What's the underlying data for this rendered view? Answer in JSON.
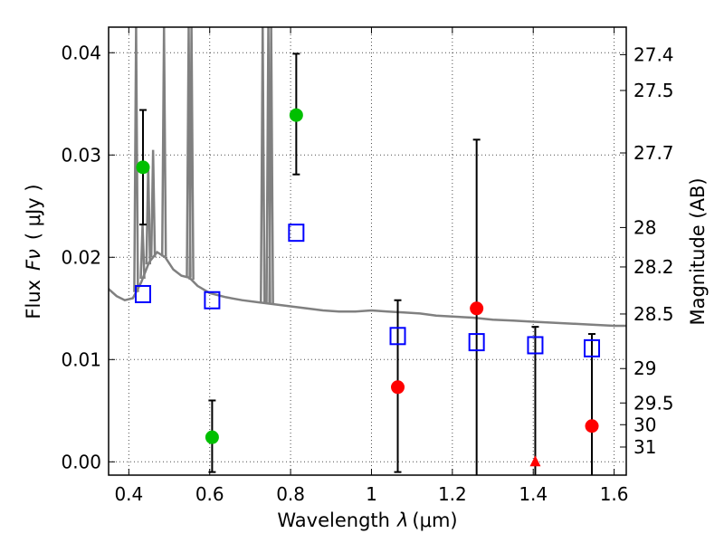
{
  "chart_data": {
    "type": "scatter",
    "xlabel_prefix": "Wavelength",
    "xlabel_symbol": "λ",
    "xlabel_unit": "(μm)",
    "ylabel_prefix": "Flux",
    "ylabel_symbol": "Fν",
    "ylabel_unit": "( μJy )",
    "y2label": "Magnitude (AB)",
    "xlim": [
      0.35,
      1.63
    ],
    "ylim": [
      -0.0013,
      0.0425
    ],
    "x_ticks": [
      0.4,
      0.6,
      0.8,
      1.0,
      1.2,
      1.4,
      1.6
    ],
    "x_tick_labels": [
      "0.4",
      "0.6",
      "0.8",
      "1",
      "1.2",
      "1.4",
      "1.6"
    ],
    "y_ticks": [
      0.0,
      0.01,
      0.02,
      0.03,
      0.04
    ],
    "y_tick_labels": [
      "0.00",
      "0.01",
      "0.02",
      "0.03",
      "0.04"
    ],
    "mag_ticks": [
      27.4,
      27.5,
      27.7,
      28,
      28.2,
      28.5,
      29,
      29.5,
      30,
      31
    ],
    "mag_tick_labels": [
      "27.4",
      "27.5",
      "27.7",
      "28",
      "28.2",
      "28.5",
      "29",
      "29.5",
      "30",
      "31"
    ],
    "grid": true,
    "colors": {
      "model": "#808080",
      "green": "#00c000",
      "red": "#ff0000",
      "model_photometry": "#0000ff",
      "errorbar": "#000000"
    },
    "series": [
      {
        "marker": "circle",
        "color": "green",
        "points": [
          {
            "x": 0.435,
            "y": 0.0288,
            "ylo": 0.0232,
            "yhi": 0.0344
          },
          {
            "x": 0.606,
            "y": 0.0024,
            "ylo": -0.001,
            "yhi": 0.006
          },
          {
            "x": 0.814,
            "y": 0.0339,
            "ylo": 0.0281,
            "yhi": 0.0399
          }
        ]
      },
      {
        "marker": "circle",
        "color": "red",
        "points": [
          {
            "x": 1.065,
            "y": 0.0073,
            "ylo": -0.001,
            "yhi": 0.0158
          },
          {
            "x": 1.26,
            "y": 0.015,
            "ylo": -0.0013,
            "yhi": 0.0315
          },
          {
            "x": 1.545,
            "y": 0.0035,
            "ylo": -0.0013,
            "yhi": 0.0125
          }
        ]
      },
      {
        "marker": "triangle",
        "color": "red",
        "points": [
          {
            "x": 1.405,
            "y": 0.0,
            "ylo": -0.0013,
            "yhi": 0.0132
          }
        ]
      },
      {
        "marker": "square",
        "color": "model_photometry",
        "points": [
          {
            "x": 0.435,
            "y": 0.0164
          },
          {
            "x": 0.606,
            "y": 0.0158
          },
          {
            "x": 0.814,
            "y": 0.0224
          },
          {
            "x": 1.065,
            "y": 0.0123
          },
          {
            "x": 1.26,
            "y": 0.0117
          },
          {
            "x": 1.405,
            "y": 0.0114
          },
          {
            "x": 1.545,
            "y": 0.0111
          }
        ]
      }
    ],
    "model_continuum": [
      [
        0.35,
        0.0169
      ],
      [
        0.37,
        0.0162
      ],
      [
        0.39,
        0.0158
      ],
      [
        0.41,
        0.016
      ],
      [
        0.43,
        0.0175
      ],
      [
        0.45,
        0.0195
      ],
      [
        0.47,
        0.0205
      ],
      [
        0.49,
        0.02
      ],
      [
        0.51,
        0.0188
      ],
      [
        0.53,
        0.0182
      ],
      [
        0.55,
        0.018
      ],
      [
        0.57,
        0.0172
      ],
      [
        0.6,
        0.0165
      ],
      [
        0.64,
        0.0161
      ],
      [
        0.68,
        0.0158
      ],
      [
        0.72,
        0.0156
      ],
      [
        0.76,
        0.0154
      ],
      [
        0.8,
        0.0152
      ],
      [
        0.84,
        0.015
      ],
      [
        0.88,
        0.0148
      ],
      [
        0.92,
        0.0147
      ],
      [
        0.96,
        0.0147
      ],
      [
        1.0,
        0.0148
      ],
      [
        1.04,
        0.0147
      ],
      [
        1.08,
        0.0146
      ],
      [
        1.12,
        0.0145
      ],
      [
        1.16,
        0.0143
      ],
      [
        1.2,
        0.0142
      ],
      [
        1.25,
        0.0141
      ],
      [
        1.3,
        0.0139
      ],
      [
        1.35,
        0.0138
      ],
      [
        1.4,
        0.0137
      ],
      [
        1.45,
        0.0136
      ],
      [
        1.5,
        0.0135
      ],
      [
        1.55,
        0.0134
      ],
      [
        1.6,
        0.0133
      ],
      [
        1.63,
        0.0133
      ]
    ],
    "model_emission_lines": [
      {
        "x": 0.418,
        "peak": 0.0425
      },
      {
        "x": 0.434,
        "peak": 0.0232
      },
      {
        "x": 0.448,
        "peak": 0.029
      },
      {
        "x": 0.46,
        "peak": 0.0305
      },
      {
        "x": 0.487,
        "peak": 0.0425
      },
      {
        "x": 0.548,
        "peak": 0.0425
      },
      {
        "x": 0.555,
        "peak": 0.0425
      },
      {
        "x": 0.731,
        "peak": 0.0425
      },
      {
        "x": 0.745,
        "peak": 0.0425
      },
      {
        "x": 0.752,
        "peak": 0.0425
      }
    ]
  }
}
